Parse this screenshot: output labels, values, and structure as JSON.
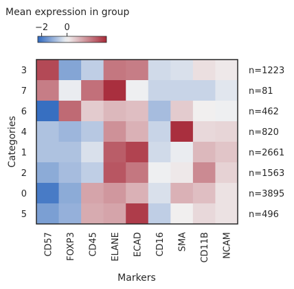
{
  "chart_data": {
    "type": "heatmap",
    "xlabel": "Markers",
    "ylabel": "Categories",
    "markers": [
      "CD57",
      "FOXP3",
      "CD45",
      "ELANE",
      "ECAD",
      "CD16",
      "SMA",
      "CD11B",
      "NCAM"
    ],
    "categories": [
      "3",
      "7",
      "6",
      "4",
      "1",
      "2",
      "0",
      "5"
    ],
    "counts": [
      "n=1223",
      "n=81",
      "n=462",
      "n=820",
      "n=2661",
      "n=1563",
      "n=3895",
      "n=496"
    ],
    "values": [
      [
        2.6,
        -1.3,
        -0.6,
        1.9,
        1.8,
        -0.4,
        -0.3,
        0.3,
        0.15
      ],
      [
        1.8,
        -0.1,
        2.0,
        3.0,
        -0.05,
        -0.5,
        -0.5,
        -0.5,
        -0.2
      ],
      [
        -2.2,
        2.1,
        0.6,
        0.9,
        0.8,
        -0.9,
        0.6,
        0.05,
        -0.05
      ],
      [
        -0.8,
        -1.0,
        -0.7,
        1.5,
        1.0,
        -0.5,
        3.0,
        0.4,
        0.45
      ],
      [
        -0.8,
        -0.8,
        -0.3,
        2.3,
        2.7,
        -0.4,
        -0.1,
        0.9,
        0.7
      ],
      [
        -1.2,
        -0.9,
        -0.6,
        2.4,
        1.9,
        -0.05,
        0.15,
        1.6,
        0.5
      ],
      [
        -2.0,
        -1.2,
        1.2,
        1.4,
        1.0,
        -0.3,
        1.0,
        0.8,
        0.25
      ],
      [
        -1.4,
        -1.1,
        1.1,
        1.2,
        2.8,
        -0.6,
        0.05,
        0.4,
        0.25
      ]
    ],
    "colorbar": {
      "title": "Mean expression in group",
      "cmap": "vlag",
      "vmin": -2.3,
      "vmax": 3.1,
      "ticks": [
        -2,
        0
      ],
      "tick_labels": [
        "−2",
        "0"
      ]
    },
    "colors": {
      "low": "#2f69bf",
      "mid": "#f2f2f2",
      "high": "#a72938",
      "frame": "#262626"
    }
  }
}
